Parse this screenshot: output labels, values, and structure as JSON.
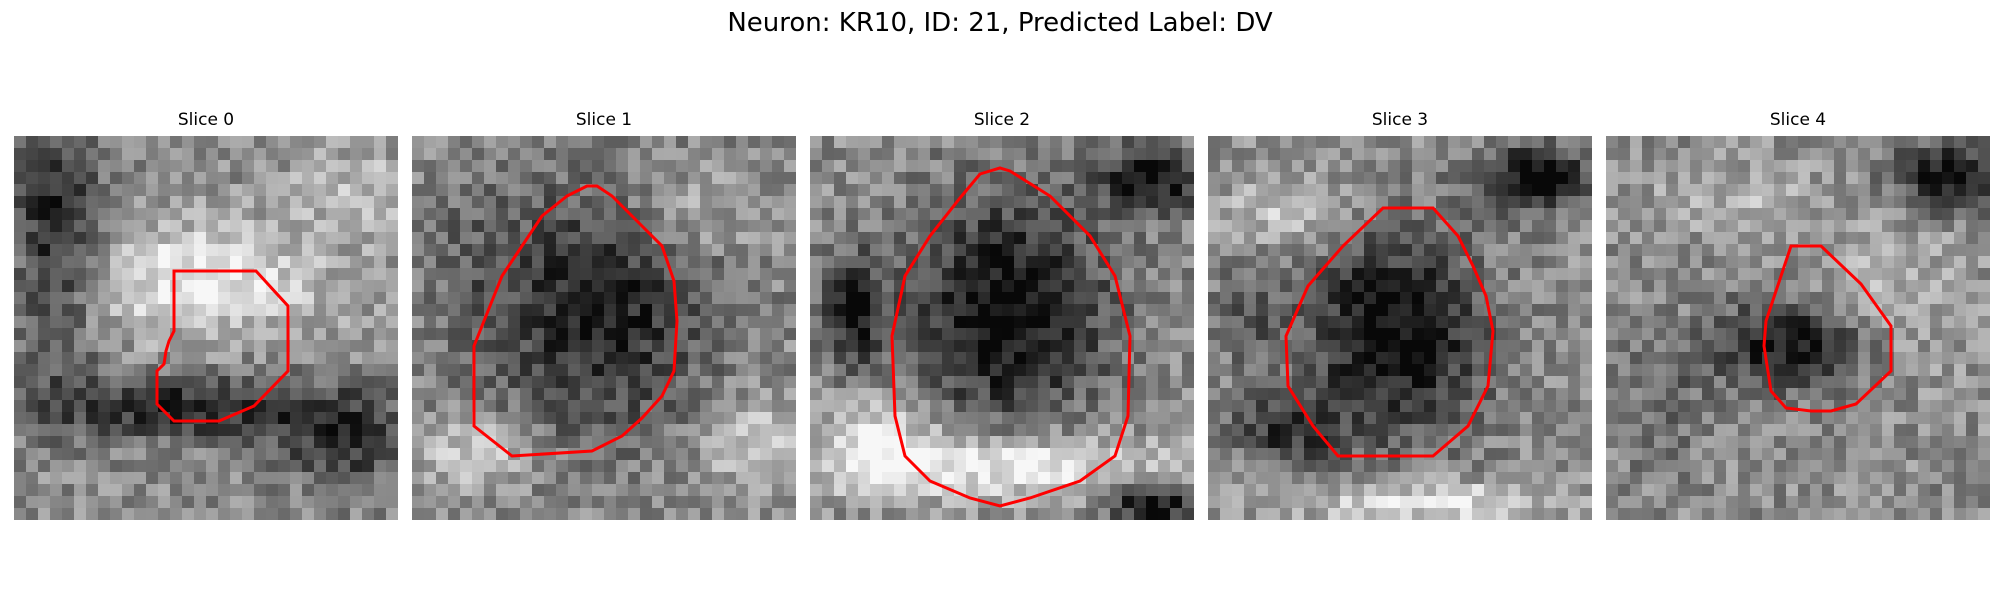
{
  "figure": {
    "title": "Neuron: KR10, ID: 21, Predicted Label: DV"
  },
  "outline_color": "#ff0000",
  "slices": [
    {
      "title": "Slice 0"
    },
    {
      "title": "Slice 1"
    },
    {
      "title": "Slice 2"
    },
    {
      "title": "Slice 3"
    },
    {
      "title": "Slice 4"
    }
  ]
}
